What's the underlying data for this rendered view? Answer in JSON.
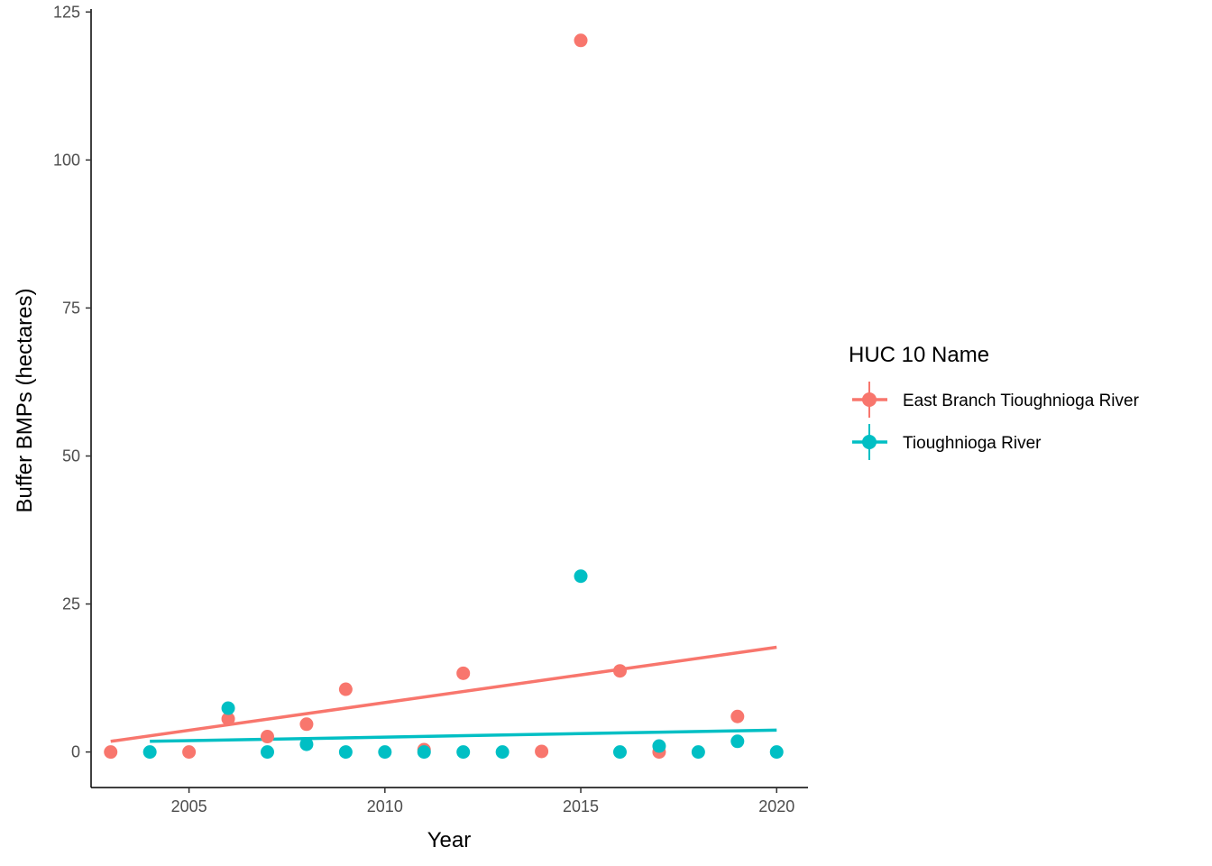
{
  "chart_data": {
    "type": "scatter",
    "xlabel": "Year",
    "ylabel": "Buffer BMPs (hectares)",
    "xlim": [
      2002.5,
      2020.8
    ],
    "ylim": [
      -6,
      125.5
    ],
    "xticks": [
      2005,
      2010,
      2015,
      2020
    ],
    "yticks": [
      0,
      25,
      50,
      75,
      100,
      125
    ],
    "grid": false,
    "legend": {
      "title": "HUC 10 Name",
      "placement": "right"
    },
    "series": [
      {
        "name": "East Branch Tioughnioga River",
        "color": "#F8766D",
        "points": [
          [
            2003,
            0.0
          ],
          [
            2005,
            0.0
          ],
          [
            2006,
            5.6
          ],
          [
            2007,
            2.6
          ],
          [
            2008,
            4.7
          ],
          [
            2009,
            10.6
          ],
          [
            2011,
            0.4
          ],
          [
            2012,
            13.3
          ],
          [
            2014,
            0.1
          ],
          [
            2015,
            120.2
          ],
          [
            2016,
            13.7
          ],
          [
            2017,
            0.0
          ],
          [
            2019,
            6.0
          ]
        ],
        "trend": [
          [
            2003,
            1.8
          ],
          [
            2020,
            17.7
          ]
        ]
      },
      {
        "name": "Tioughnioga River",
        "color": "#00BFC4",
        "points": [
          [
            2004,
            0.0
          ],
          [
            2006,
            7.4
          ],
          [
            2007,
            0.0
          ],
          [
            2008,
            1.3
          ],
          [
            2009,
            0.0
          ],
          [
            2010,
            0.0
          ],
          [
            2011,
            0.0
          ],
          [
            2012,
            0.0
          ],
          [
            2013,
            0.0
          ],
          [
            2015,
            29.7
          ],
          [
            2016,
            0.0
          ],
          [
            2017,
            1.0
          ],
          [
            2018,
            0.0
          ],
          [
            2019,
            1.8
          ],
          [
            2020,
            0.0
          ]
        ],
        "trend": [
          [
            2004,
            1.8
          ],
          [
            2020,
            3.7
          ]
        ]
      }
    ]
  }
}
